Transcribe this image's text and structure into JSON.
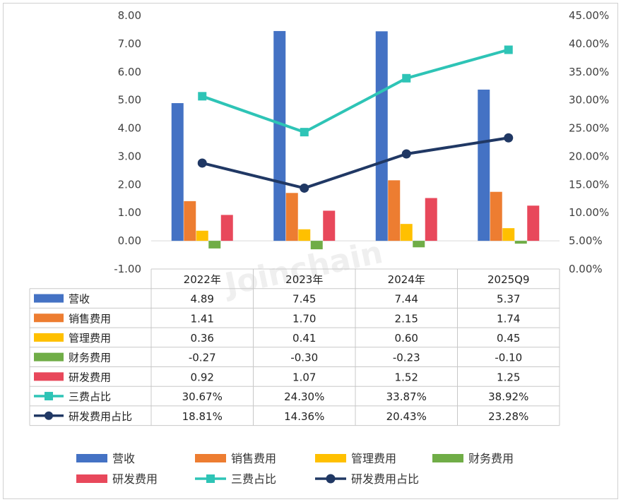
{
  "chart_data": {
    "type": "bar",
    "categories": [
      "2022年",
      "2023年",
      "2024年",
      "2025Q9"
    ],
    "y_left": {
      "min": -1,
      "max": 8,
      "step": 1,
      "ticks": [
        "8.00",
        "7.00",
        "6.00",
        "5.00",
        "4.00",
        "3.00",
        "2.00",
        "1.00",
        "0.00",
        "-1.00"
      ]
    },
    "y_right": {
      "min": 0,
      "max": 45,
      "step": 5,
      "ticks": [
        "45.00%",
        "40.00%",
        "35.00%",
        "30.00%",
        "25.00%",
        "20.00%",
        "15.00%",
        "10.00%",
        "5.00%",
        "0.00%"
      ]
    },
    "bar_series": [
      {
        "name": "营收",
        "color": "#4472C4",
        "values": [
          4.89,
          7.45,
          7.44,
          5.37
        ],
        "labels": [
          "4.89",
          "7.45",
          "7.44",
          "5.37"
        ]
      },
      {
        "name": "销售费用",
        "color": "#ED7D31",
        "values": [
          1.41,
          1.7,
          2.15,
          1.74
        ],
        "labels": [
          "1.41",
          "1.70",
          "2.15",
          "1.74"
        ]
      },
      {
        "name": "管理费用",
        "color": "#FFC000",
        "values": [
          0.36,
          0.41,
          0.6,
          0.45
        ],
        "labels": [
          "0.36",
          "0.41",
          "0.60",
          "0.45"
        ]
      },
      {
        "name": "财务费用",
        "color": "#70AD47",
        "values": [
          -0.27,
          -0.3,
          -0.23,
          -0.1
        ],
        "labels": [
          "-0.27",
          "-0.30",
          "-0.23",
          "-0.10"
        ]
      },
      {
        "name": "研发费用",
        "color": "#E8485B",
        "values": [
          0.92,
          1.07,
          1.52,
          1.25
        ],
        "labels": [
          "0.92",
          "1.07",
          "1.52",
          "1.25"
        ]
      }
    ],
    "line_series": [
      {
        "name": "三费占比",
        "color": "#2EC4B6",
        "marker": "square",
        "values": [
          30.67,
          24.3,
          33.87,
          38.92
        ],
        "labels": [
          "30.67%",
          "24.30%",
          "33.87%",
          "38.92%"
        ]
      },
      {
        "name": "研发费用占比",
        "color": "#203864",
        "marker": "circle",
        "values": [
          18.81,
          14.36,
          20.43,
          23.28
        ],
        "labels": [
          "18.81%",
          "14.36%",
          "20.43%",
          "23.28%"
        ]
      }
    ],
    "watermark": "Joinchain"
  }
}
